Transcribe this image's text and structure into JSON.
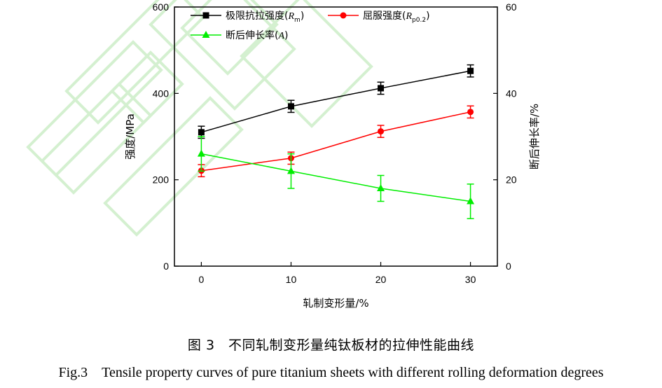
{
  "caption": {
    "cn": "图 3　不同轧制变形量纯钛板材的拉伸性能曲线",
    "en": "Fig.3　Tensile property curves of pure titanium sheets with different rolling deformation degrees"
  },
  "chart_data": {
    "type": "line",
    "x": [
      0,
      10,
      20,
      30
    ],
    "xlabel": "轧制变形量/%",
    "ylabel": "强度/MPa",
    "y2label": "断后伸长率/%",
    "xlim": [
      -3,
      33
    ],
    "ylim": [
      0,
      600
    ],
    "y2lim": [
      0,
      60
    ],
    "xticks": [
      0,
      10,
      20,
      30
    ],
    "yticks": [
      0,
      200,
      400,
      600
    ],
    "y2ticks": [
      0,
      20,
      40,
      60
    ],
    "grid": false,
    "legend_position": "top",
    "series": [
      {
        "name": "极限抗拉强度(Rm)",
        "label_main": "极限抗拉强度(",
        "label_sym": "R",
        "label_sub": "m",
        "label_end": ")",
        "axis": "left",
        "color": "#000000",
        "marker": "square",
        "values": [
          310,
          370,
          412,
          452
        ],
        "errors": [
          14,
          14,
          14,
          14
        ]
      },
      {
        "name": "屈服强度(Rp0.2)",
        "label_main": "屈服强度(",
        "label_sym": "R",
        "label_sub": "p0.2",
        "label_end": ")",
        "axis": "left",
        "color": "#ff0000",
        "marker": "circle",
        "values": [
          221,
          250,
          312,
          357
        ],
        "errors": [
          14,
          14,
          14,
          14
        ]
      },
      {
        "name": "断后伸长率(A)",
        "label_main": "断后伸长率(",
        "label_sym": "A",
        "label_sub": "",
        "label_end": ")",
        "axis": "right",
        "color": "#00ee00",
        "marker": "triangle",
        "values": [
          26,
          22,
          18,
          15
        ],
        "errors": [
          4,
          4,
          3,
          4
        ]
      }
    ]
  },
  "watermark": {
    "color": "#d4f0d0"
  }
}
